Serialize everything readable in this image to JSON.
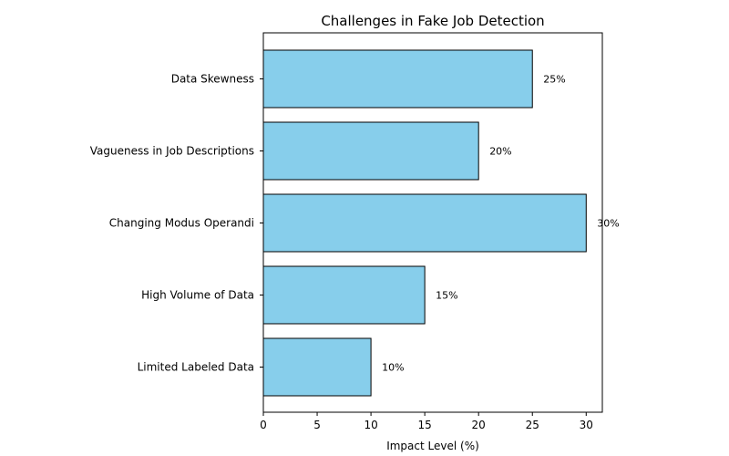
{
  "chart_data": {
    "type": "bar",
    "orientation": "horizontal",
    "title": "Challenges in Fake Job Detection",
    "xlabel": "Impact Level (%)",
    "ylabel": "",
    "categories": [
      "Data Skewness",
      "Vagueness in Job Descriptions",
      "Changing Modus Operandi",
      "High Volume of Data",
      "Limited Labeled Data"
    ],
    "values": [
      25,
      20,
      30,
      15,
      10
    ],
    "data_labels": [
      "25%",
      "20%",
      "30%",
      "15%",
      "10%"
    ],
    "xlim": [
      0,
      31.5
    ],
    "xticks": [
      0,
      5,
      10,
      15,
      20,
      25,
      30
    ],
    "grid": false,
    "legend": "none",
    "bar_color": "#87ceeb",
    "edge_color": "#000000"
  }
}
